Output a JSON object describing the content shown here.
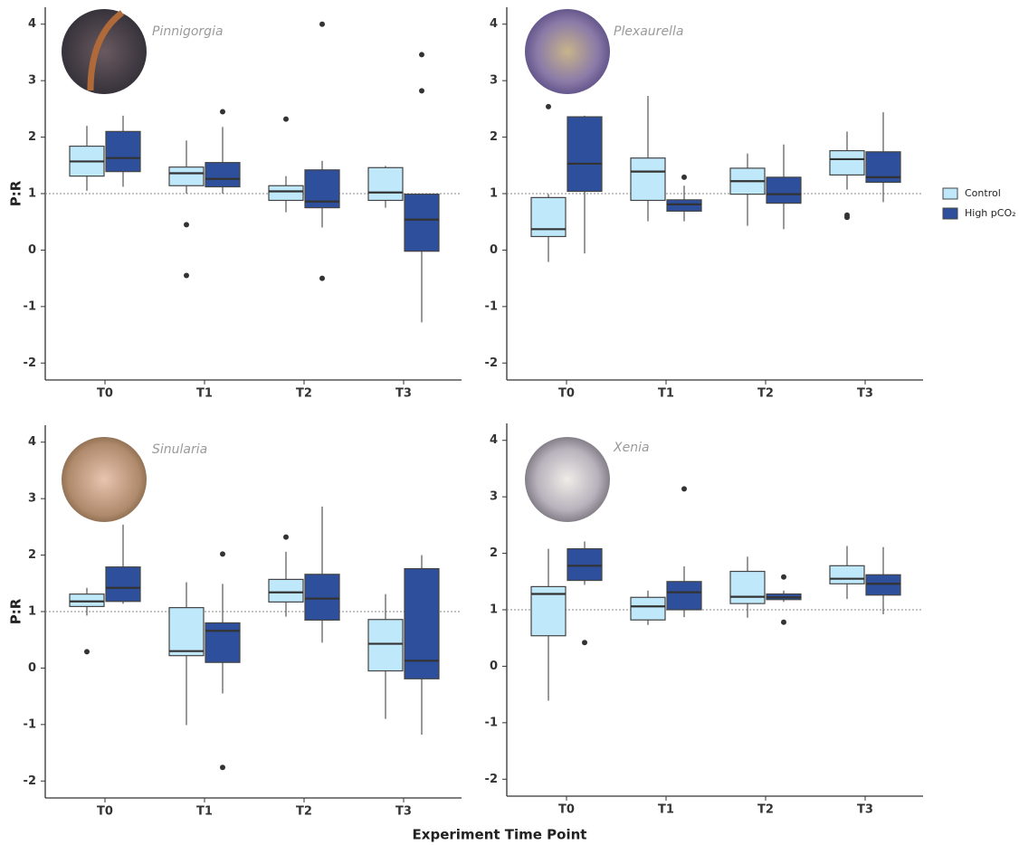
{
  "x_label": "Experiment Time Point",
  "chart_data": [
    {
      "type": "boxplot",
      "title": "Pinnigorgia",
      "y_label": "P:R",
      "categories": [
        "T0",
        "T1",
        "T2",
        "T3"
      ],
      "ylim": [
        -2.3,
        4.3
      ],
      "yticks": [
        -2,
        -1,
        0,
        1,
        2,
        3,
        4
      ],
      "hline": 1,
      "series": [
        {
          "name": "Control",
          "color": "#bfe9fb",
          "boxes": [
            {
              "min": 1.05,
              "q1": 1.31,
              "median": 1.57,
              "q3": 1.84,
              "max": 2.2,
              "outliers": []
            },
            {
              "min": 1.0,
              "q1": 1.14,
              "median": 1.36,
              "q3": 1.47,
              "max": 1.94,
              "outliers": [
                0.45,
                -0.45
              ]
            },
            {
              "min": 0.67,
              "q1": 0.88,
              "median": 1.04,
              "q3": 1.14,
              "max": 1.31,
              "outliers": [
                2.32
              ]
            },
            {
              "min": 0.75,
              "q1": 0.88,
              "median": 1.02,
              "q3": 1.46,
              "max": 1.49,
              "outliers": []
            }
          ]
        },
        {
          "name": "High pCO₂",
          "color": "#2d4f9c",
          "boxes": [
            {
              "min": 1.12,
              "q1": 1.39,
              "median": 1.63,
              "q3": 2.1,
              "max": 2.38,
              "outliers": []
            },
            {
              "min": 1.0,
              "q1": 1.12,
              "median": 1.26,
              "q3": 1.55,
              "max": 2.18,
              "outliers": [
                2.45
              ]
            },
            {
              "min": 0.4,
              "q1": 0.75,
              "median": 0.86,
              "q3": 1.42,
              "max": 1.58,
              "outliers": [
                4.0,
                -0.5
              ]
            },
            {
              "min": -1.28,
              "q1": -0.02,
              "median": 0.54,
              "q3": 0.99,
              "max": 1.0,
              "outliers": [
                3.46,
                2.82
              ]
            }
          ]
        }
      ]
    },
    {
      "type": "boxplot",
      "title": "Plexaurella",
      "categories": [
        "T0",
        "T1",
        "T2",
        "T3"
      ],
      "ylim": [
        -2.3,
        4.3
      ],
      "yticks": [
        -2,
        -1,
        0,
        1,
        2,
        3,
        4
      ],
      "hline": 1,
      "series": [
        {
          "name": "Control",
          "color": "#bfe9fb",
          "boxes": [
            {
              "min": -0.21,
              "q1": 0.24,
              "median": 0.37,
              "q3": 0.93,
              "max": 0.99,
              "outliers": [
                2.54
              ]
            },
            {
              "min": 0.51,
              "q1": 0.88,
              "median": 1.39,
              "q3": 1.63,
              "max": 2.73,
              "outliers": []
            },
            {
              "min": 0.43,
              "q1": 0.99,
              "median": 1.22,
              "q3": 1.45,
              "max": 1.71,
              "outliers": []
            },
            {
              "min": 1.07,
              "q1": 1.33,
              "median": 1.61,
              "q3": 1.76,
              "max": 2.1,
              "outliers": [
                0.62,
                0.58
              ]
            }
          ]
        },
        {
          "name": "High pCO₂",
          "color": "#2d4f9c",
          "boxes": [
            {
              "min": -0.06,
              "q1": 1.04,
              "median": 1.53,
              "q3": 2.36,
              "max": 2.38,
              "outliers": []
            },
            {
              "min": 0.51,
              "q1": 0.69,
              "median": 0.81,
              "q3": 0.89,
              "max": 1.14,
              "outliers": [
                1.29
              ]
            },
            {
              "min": 0.37,
              "q1": 0.83,
              "median": 0.99,
              "q3": 1.29,
              "max": 1.87,
              "outliers": []
            },
            {
              "min": 0.85,
              "q1": 1.2,
              "median": 1.29,
              "q3": 1.74,
              "max": 2.44,
              "outliers": []
            }
          ]
        }
      ]
    },
    {
      "type": "boxplot",
      "title": "Sinularia",
      "y_label": "P:R",
      "categories": [
        "T0",
        "T1",
        "T2",
        "T3"
      ],
      "ylim": [
        -2.3,
        4.3
      ],
      "yticks": [
        -2,
        -1,
        0,
        1,
        2,
        3,
        4
      ],
      "hline": 1,
      "series": [
        {
          "name": "Control",
          "color": "#bfe9fb",
          "boxes": [
            {
              "min": 0.93,
              "q1": 1.09,
              "median": 1.18,
              "q3": 1.31,
              "max": 1.42,
              "outliers": [
                0.29
              ]
            },
            {
              "min": -1.01,
              "q1": 0.22,
              "median": 0.3,
              "q3": 1.07,
              "max": 1.52,
              "outliers": []
            },
            {
              "min": 0.91,
              "q1": 1.17,
              "median": 1.34,
              "q3": 1.57,
              "max": 2.06,
              "outliers": [
                2.32
              ]
            },
            {
              "min": -0.9,
              "q1": -0.05,
              "median": 0.43,
              "q3": 0.86,
              "max": 1.31,
              "outliers": []
            }
          ]
        },
        {
          "name": "High pCO₂",
          "color": "#2d4f9c",
          "boxes": [
            {
              "min": 1.14,
              "q1": 1.18,
              "median": 1.42,
              "q3": 1.79,
              "max": 2.54,
              "outliers": []
            },
            {
              "min": -0.45,
              "q1": 0.1,
              "median": 0.66,
              "q3": 0.8,
              "max": 1.49,
              "outliers": [
                2.02,
                -1.76
              ]
            },
            {
              "min": 0.45,
              "q1": 0.85,
              "median": 1.23,
              "q3": 1.66,
              "max": 2.86,
              "outliers": []
            },
            {
              "min": -1.18,
              "q1": -0.19,
              "median": 0.13,
              "q3": 1.76,
              "max": 2.0,
              "outliers": []
            }
          ]
        }
      ]
    },
    {
      "type": "boxplot",
      "title": "Xenia",
      "categories": [
        "T0",
        "T1",
        "T2",
        "T3"
      ],
      "ylim": [
        -2.3,
        4.3
      ],
      "yticks": [
        -2,
        -1,
        0,
        1,
        2,
        3,
        4
      ],
      "hline": 1,
      "series": [
        {
          "name": "Control",
          "color": "#bfe9fb",
          "boxes": [
            {
              "min": -0.61,
              "q1": 0.54,
              "median": 1.28,
              "q3": 1.41,
              "max": 2.08,
              "outliers": []
            },
            {
              "min": 0.73,
              "q1": 0.82,
              "median": 1.06,
              "q3": 1.22,
              "max": 1.34,
              "outliers": []
            },
            {
              "min": 0.86,
              "q1": 1.11,
              "median": 1.23,
              "q3": 1.68,
              "max": 1.94,
              "outliers": []
            },
            {
              "min": 1.19,
              "q1": 1.46,
              "median": 1.55,
              "q3": 1.78,
              "max": 2.13,
              "outliers": []
            }
          ]
        },
        {
          "name": "High pCO₂",
          "color": "#2d4f9c",
          "boxes": [
            {
              "min": 1.44,
              "q1": 1.52,
              "median": 1.78,
              "q3": 2.08,
              "max": 2.21,
              "outliers": [
                0.42
              ]
            },
            {
              "min": 0.87,
              "q1": 1.0,
              "median": 1.31,
              "q3": 1.5,
              "max": 1.77,
              "outliers": [
                3.14
              ]
            },
            {
              "min": 1.14,
              "q1": 1.18,
              "median": 1.22,
              "q3": 1.28,
              "max": 1.34,
              "outliers": [
                1.58,
                0.78
              ]
            },
            {
              "min": 0.92,
              "q1": 1.26,
              "median": 1.46,
              "q3": 1.62,
              "max": 2.11,
              "outliers": []
            }
          ]
        }
      ]
    }
  ]
}
